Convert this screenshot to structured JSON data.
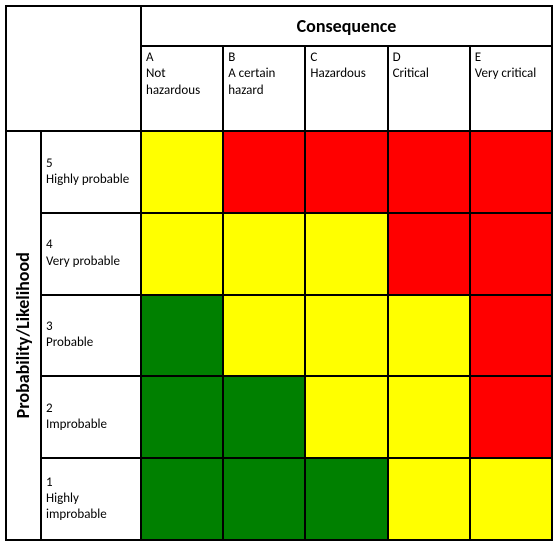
{
  "type": "risk-matrix",
  "background_color": "#ffffff",
  "border_color": "#000000",
  "font_family": "Calibri, Arial, sans-serif",
  "header_fontsize": 18,
  "cell_fontsize": 13,
  "colors": {
    "green": "#008000",
    "yellow": "#ffff00",
    "red": "#ff0000"
  },
  "axis_x": {
    "title": "Consequence",
    "headers": [
      {
        "code": "A",
        "label": "Not hazardous"
      },
      {
        "code": "B",
        "label": "A certain hazard"
      },
      {
        "code": "C",
        "label": "Hazardous"
      },
      {
        "code": "D",
        "label": "Critical"
      },
      {
        "code": "E",
        "label": "Very critical"
      }
    ]
  },
  "axis_y": {
    "title": "Probability/Likelihood",
    "headers": [
      {
        "code": "5",
        "label": "Highly probable"
      },
      {
        "code": "4",
        "label": "Very probable"
      },
      {
        "code": "3",
        "label": "Probable"
      },
      {
        "code": "2",
        "label": "Improbable"
      },
      {
        "code": "1",
        "label": "Highly improbable"
      }
    ]
  },
  "matrix_colors": [
    [
      "#ffff00",
      "#ff0000",
      "#ff0000",
      "#ff0000",
      "#ff0000"
    ],
    [
      "#ffff00",
      "#ffff00",
      "#ffff00",
      "#ff0000",
      "#ff0000"
    ],
    [
      "#008000",
      "#ffff00",
      "#ffff00",
      "#ffff00",
      "#ff0000"
    ],
    [
      "#008000",
      "#008000",
      "#ffff00",
      "#ffff00",
      "#ff0000"
    ],
    [
      "#008000",
      "#008000",
      "#008000",
      "#ffff00",
      "#ffff00"
    ]
  ]
}
